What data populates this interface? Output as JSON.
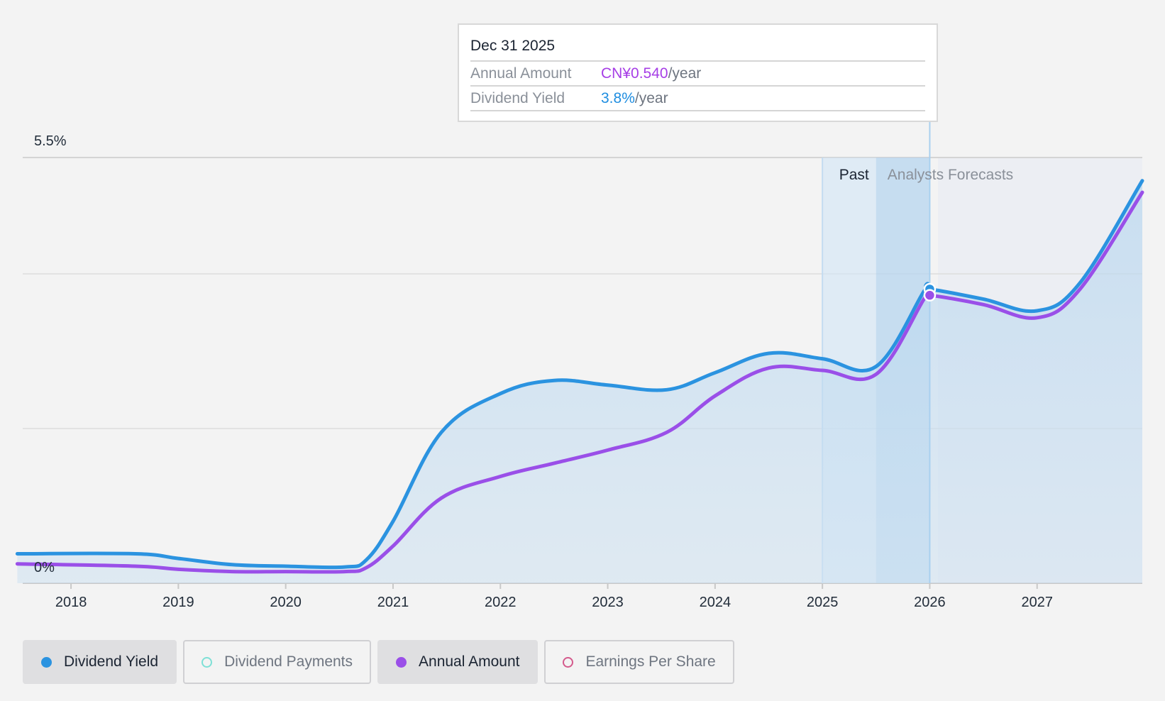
{
  "colors": {
    "dividend_yield": "#2b93e0",
    "annual_amount": "#9a4fe8",
    "dividend_payments": "#7ee0d6",
    "earnings_per_share": "#d45a8c"
  },
  "tooltip": {
    "date": "Dec 31 2025",
    "annual_label": "Annual Amount",
    "annual_value": "CN¥0.540",
    "annual_unit": "/year",
    "yield_label": "Dividend Yield",
    "yield_value": "3.8%",
    "yield_unit": "/year"
  },
  "legend": [
    {
      "label": "Dividend Yield",
      "state": "active",
      "color": "#2b93e0",
      "filled": true
    },
    {
      "label": "Dividend Payments",
      "state": "inactive",
      "color": "#7ee0d6",
      "filled": false
    },
    {
      "label": "Annual Amount",
      "state": "active",
      "color": "#9a4fe8",
      "filled": true
    },
    {
      "label": "Earnings Per Share",
      "state": "inactive",
      "color": "#d45a8c",
      "filled": false
    }
  ],
  "chart_data": {
    "type": "line",
    "y_axis_labels": [
      "5.5%",
      "0%"
    ],
    "ylim": [
      0,
      5.5
    ],
    "xlim": [
      2017.55,
      2027.98
    ],
    "x_ticks": [
      "2018",
      "2019",
      "2020",
      "2021",
      "2022",
      "2023",
      "2024",
      "2025",
      "2026",
      "2027"
    ],
    "x_tick_values": [
      2018,
      2019,
      2020,
      2021,
      2022,
      2023,
      2024,
      2025,
      2026,
      2027
    ],
    "period_labels": {
      "past": "Past",
      "forecast": "Analysts Forecasts"
    },
    "past_band": [
      2025.0,
      2026.0
    ],
    "highlight_x": 2026.0,
    "series": [
      {
        "name": "Dividend Yield",
        "x": [
          2017.5,
          2018.6,
          2019.0,
          2019.5,
          2020.0,
          2020.55,
          2020.75,
          2021.0,
          2021.45,
          2022.0,
          2022.5,
          2023.0,
          2023.55,
          2024.0,
          2024.5,
          2025.0,
          2025.5,
          2025.95,
          2026.0,
          2026.5,
          2027.0,
          2027.4,
          2027.98
        ],
        "values": [
          0.38,
          0.38,
          0.32,
          0.24,
          0.22,
          0.21,
          0.3,
          0.8,
          1.95,
          2.45,
          2.62,
          2.56,
          2.5,
          2.72,
          2.97,
          2.9,
          2.8,
          3.78,
          3.8,
          3.67,
          3.52,
          3.88,
          5.2
        ]
      },
      {
        "name": "Annual Amount",
        "x": [
          2017.5,
          2018.6,
          2019.0,
          2019.5,
          2020.0,
          2020.55,
          2020.75,
          2021.0,
          2021.45,
          2022.0,
          2022.5,
          2023.0,
          2023.55,
          2024.0,
          2024.5,
          2025.0,
          2025.5,
          2025.95,
          2026.0,
          2026.5,
          2027.0,
          2027.4,
          2027.98
        ],
        "values": [
          0.25,
          0.22,
          0.18,
          0.15,
          0.15,
          0.15,
          0.2,
          0.48,
          1.1,
          1.38,
          1.55,
          1.72,
          1.95,
          2.42,
          2.78,
          2.75,
          2.7,
          3.68,
          3.72,
          3.6,
          3.43,
          3.8,
          5.05
        ]
      }
    ]
  }
}
